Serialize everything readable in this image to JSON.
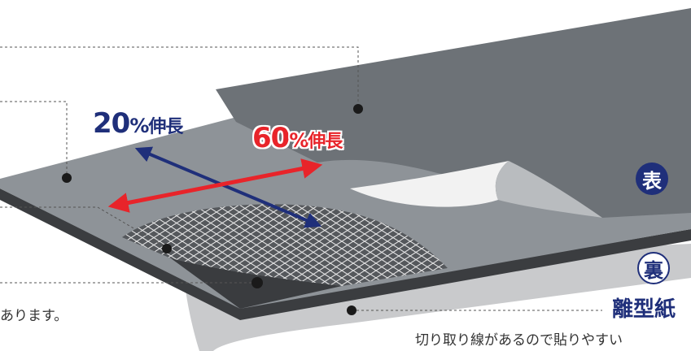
{
  "labels": {
    "stretch_20": {
      "number": "20",
      "percent": "%",
      "word": "伸長"
    },
    "stretch_60": {
      "number": "60",
      "percent": "%",
      "word": "伸長"
    },
    "front_badge": "表",
    "back_badge": "裏",
    "release_paper_title": "離型紙",
    "release_paper_desc": "切り取り線があるので貼りやすい",
    "left_note": "あります。"
  },
  "colors": {
    "navy": "#1f2f7a",
    "red": "#e8242a",
    "top_sheet": "#6e7378",
    "mid_sheet": "#8b9095",
    "mesh_layer": "#5a5d61",
    "bottom_layer": "#3a3c3f",
    "release_paper": "#c8c9cb"
  },
  "icons": {
    "stretch_20_arrow": "double-arrow",
    "stretch_60_arrow": "double-arrow",
    "front_badge": "filled-circle",
    "back_badge": "outlined-circle"
  }
}
